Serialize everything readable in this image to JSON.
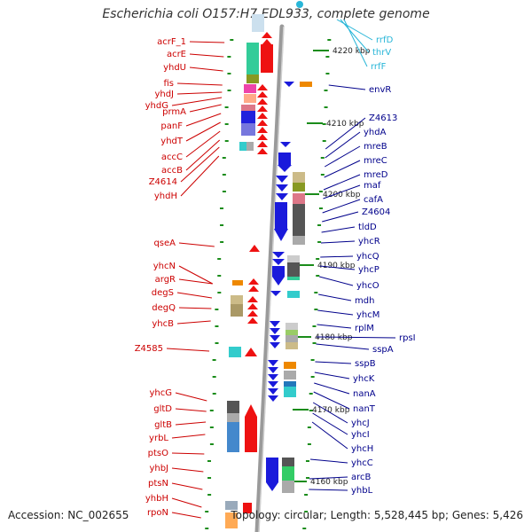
{
  "title": "Escherichia coli O157:H7 EDL933, complete genome",
  "footer": {
    "accession": "Accession: NC_002655",
    "summary": "Topology: circular; Length: 5,528,445 bp; Genes: 5,426"
  },
  "colors": {
    "forward_label": "#cc0000",
    "reverse_label": "#00008b",
    "rrna_label": "#29b6d8",
    "forward_arrow": "#ee1111",
    "reverse_arrow": "#1a1adb",
    "ruler": "#888888",
    "tick": "#1a8c1a"
  },
  "ruler_labels": [
    "4220 kbp",
    "4210 kbp",
    "4200 kbp",
    "4190 kbp",
    "4180 kbp",
    "4170 kbp",
    "4160 kbp"
  ],
  "left_labels": [
    "acrF_1",
    "acrE",
    "yhdU",
    "fis",
    "yhdJ",
    "yhdG",
    "prmA",
    "panF",
    "yhdT",
    "accC",
    "accB",
    "Z4614",
    "yhdH",
    "qseA",
    "yhcN",
    "argR",
    "degS",
    "degQ",
    "yhcB",
    "Z4585",
    "yhcG",
    "gltD",
    "gltB",
    "yrbL",
    "ptsO",
    "yhbJ",
    "ptsN",
    "yhbH",
    "rpoN"
  ],
  "right_labels": [
    "envR",
    "Z4613",
    "yhdA",
    "mreB",
    "mreC",
    "mreD",
    "maf",
    "cafA",
    "Z4604",
    "tldD",
    "yhcR",
    "yhcQ",
    "yhcP",
    "yhcO",
    "mdh",
    "yhcM",
    "rplM",
    "rpsI",
    "sspA",
    "sspB",
    "yhcK",
    "nanA",
    "nanT",
    "yhcJ",
    "yhcI",
    "yhcH",
    "yhcC",
    "arcB",
    "yhbL"
  ],
  "rrna_labels": [
    "rrfD",
    "thrV",
    "rrfF"
  ]
}
